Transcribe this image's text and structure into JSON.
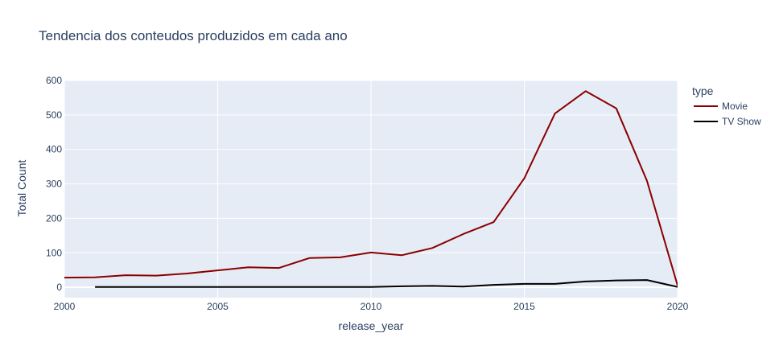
{
  "chart_data": {
    "type": "line",
    "title": "Tendencia dos conteudos produzidos em cada ano",
    "xlabel": "release_year",
    "ylabel": "Total Count",
    "xlim": [
      2000,
      2020
    ],
    "ylim": [
      -30,
      600
    ],
    "x_ticks": [
      2000,
      2005,
      2010,
      2015,
      2020
    ],
    "y_ticks": [
      0,
      100,
      200,
      300,
      400,
      500,
      600
    ],
    "grid": true,
    "plot_background": "#e5ecf6",
    "legend": {
      "title": "type",
      "placement": "right"
    },
    "series": [
      {
        "name": "Movie",
        "color": "#8b0000",
        "x": [
          2000,
          2001,
          2002,
          2003,
          2004,
          2005,
          2006,
          2007,
          2008,
          2009,
          2010,
          2011,
          2012,
          2013,
          2014,
          2015,
          2016,
          2017,
          2018,
          2019,
          2020
        ],
        "y": [
          28,
          29,
          35,
          34,
          40,
          49,
          58,
          56,
          85,
          87,
          101,
          93,
          114,
          154,
          189,
          316,
          504,
          569,
          519,
          309,
          5
        ]
      },
      {
        "name": "TV Show",
        "color": "#000000",
        "x": [
          2001,
          2002,
          2003,
          2004,
          2005,
          2006,
          2007,
          2008,
          2009,
          2010,
          2011,
          2012,
          2013,
          2014,
          2015,
          2016,
          2017,
          2018,
          2019,
          2020
        ],
        "y": [
          1,
          1,
          1,
          1,
          1,
          1,
          1,
          1,
          1,
          1,
          3,
          4,
          2,
          7,
          10,
          10,
          17,
          20,
          21,
          1
        ]
      }
    ]
  }
}
